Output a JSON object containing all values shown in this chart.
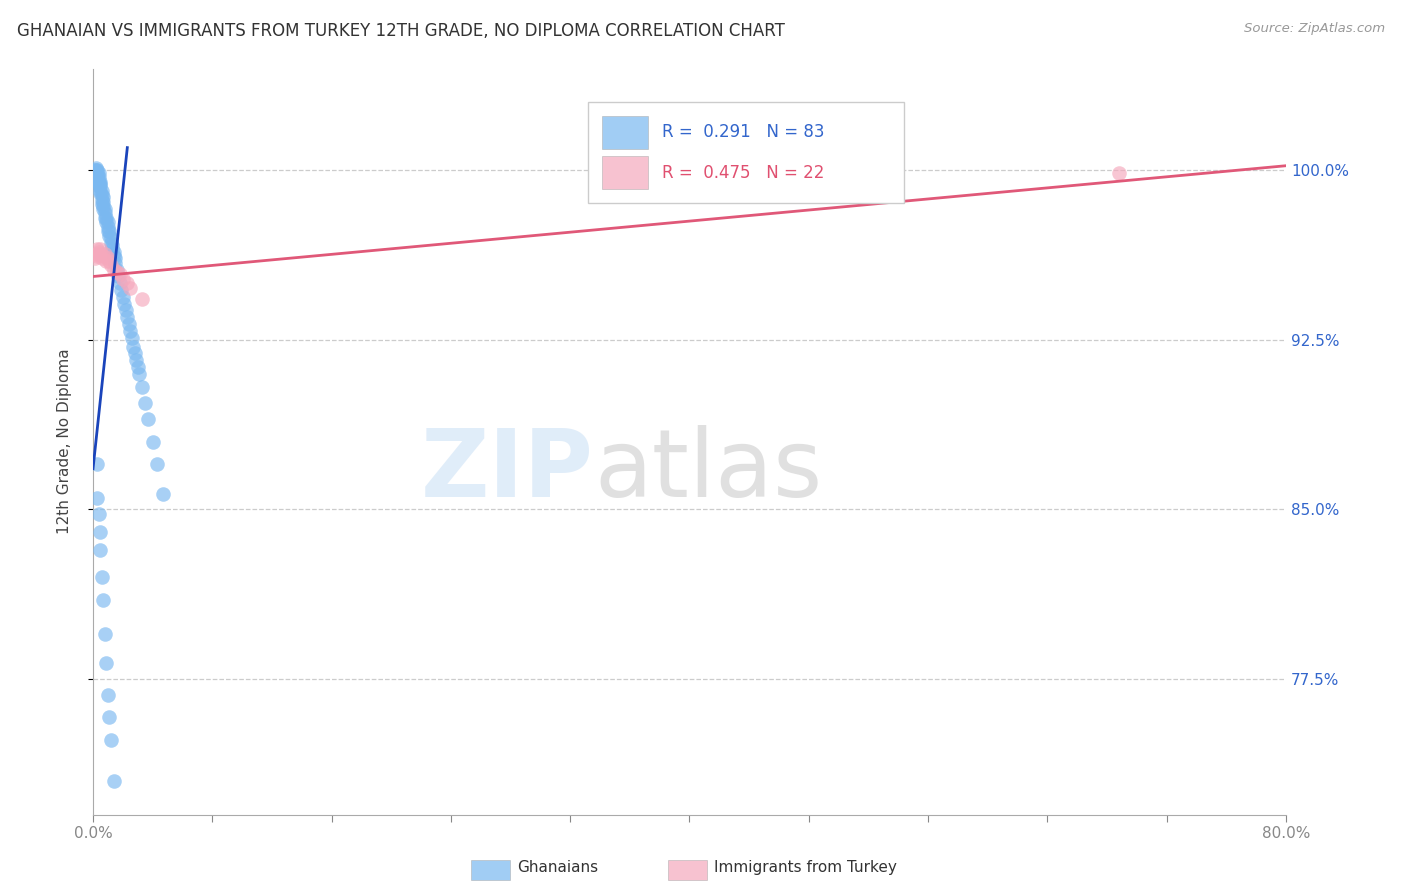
{
  "title": "GHANAIAN VS IMMIGRANTS FROM TURKEY 12TH GRADE, NO DIPLOMA CORRELATION CHART",
  "source": "Source: ZipAtlas.com",
  "ylabel": "12th Grade, No Diploma",
  "ytick_labels": [
    "77.5%",
    "85.0%",
    "92.5%",
    "100.0%"
  ],
  "ytick_values": [
    0.775,
    0.85,
    0.925,
    1.0
  ],
  "xlim": [
    0.0,
    0.8
  ],
  "ylim": [
    0.715,
    1.045
  ],
  "legend_text_blue": "R =  0.291   N = 83",
  "legend_text_pink": "R =  0.475   N = 22",
  "blue_color": "#7ab8f0",
  "pink_color": "#f5a8bc",
  "blue_line_color": "#1a44bb",
  "pink_line_color": "#e05878",
  "blue_trend_x": [
    0.0,
    0.023
  ],
  "blue_trend_y": [
    0.868,
    1.01
  ],
  "pink_trend_x": [
    0.0,
    0.8
  ],
  "pink_trend_y": [
    0.953,
    1.002
  ],
  "blue_x": [
    0.001,
    0.001,
    0.002,
    0.002,
    0.002,
    0.002,
    0.003,
    0.003,
    0.003,
    0.003,
    0.003,
    0.003,
    0.004,
    0.004,
    0.004,
    0.004,
    0.004,
    0.005,
    0.005,
    0.005,
    0.005,
    0.005,
    0.006,
    0.006,
    0.006,
    0.006,
    0.007,
    0.007,
    0.007,
    0.007,
    0.008,
    0.008,
    0.008,
    0.009,
    0.009,
    0.01,
    0.01,
    0.01,
    0.011,
    0.011,
    0.012,
    0.012,
    0.013,
    0.013,
    0.014,
    0.014,
    0.015,
    0.015,
    0.016,
    0.017,
    0.018,
    0.019,
    0.02,
    0.021,
    0.022,
    0.023,
    0.024,
    0.025,
    0.026,
    0.027,
    0.028,
    0.029,
    0.03,
    0.031,
    0.033,
    0.035,
    0.037,
    0.04,
    0.043,
    0.047,
    0.003,
    0.003,
    0.004,
    0.005,
    0.005,
    0.006,
    0.007,
    0.008,
    0.009,
    0.01,
    0.011,
    0.012,
    0.014
  ],
  "blue_y": [
    0.997,
    1.0,
    0.998,
    0.999,
    1.0,
    1.001,
    0.996,
    0.998,
    0.999,
    1.0,
    0.997,
    0.998,
    0.993,
    0.994,
    0.995,
    0.997,
    0.999,
    0.99,
    0.991,
    0.993,
    0.994,
    0.995,
    0.985,
    0.987,
    0.989,
    0.991,
    0.983,
    0.984,
    0.986,
    0.988,
    0.979,
    0.981,
    0.983,
    0.977,
    0.979,
    0.973,
    0.975,
    0.977,
    0.971,
    0.973,
    0.968,
    0.97,
    0.965,
    0.967,
    0.962,
    0.964,
    0.959,
    0.961,
    0.956,
    0.953,
    0.95,
    0.947,
    0.944,
    0.941,
    0.938,
    0.935,
    0.932,
    0.929,
    0.926,
    0.922,
    0.919,
    0.916,
    0.913,
    0.91,
    0.904,
    0.897,
    0.89,
    0.88,
    0.87,
    0.857,
    0.87,
    0.855,
    0.848,
    0.84,
    0.832,
    0.82,
    0.81,
    0.795,
    0.782,
    0.768,
    0.758,
    0.748,
    0.73
  ],
  "pink_x": [
    0.001,
    0.002,
    0.003,
    0.003,
    0.004,
    0.005,
    0.005,
    0.006,
    0.007,
    0.008,
    0.009,
    0.01,
    0.011,
    0.012,
    0.014,
    0.016,
    0.018,
    0.02,
    0.023,
    0.025,
    0.033,
    0.688
  ],
  "pink_y": [
    0.961,
    0.963,
    0.962,
    0.965,
    0.964,
    0.963,
    0.965,
    0.961,
    0.962,
    0.963,
    0.96,
    0.961,
    0.96,
    0.958,
    0.956,
    0.955,
    0.954,
    0.952,
    0.95,
    0.948,
    0.943,
    0.999
  ]
}
